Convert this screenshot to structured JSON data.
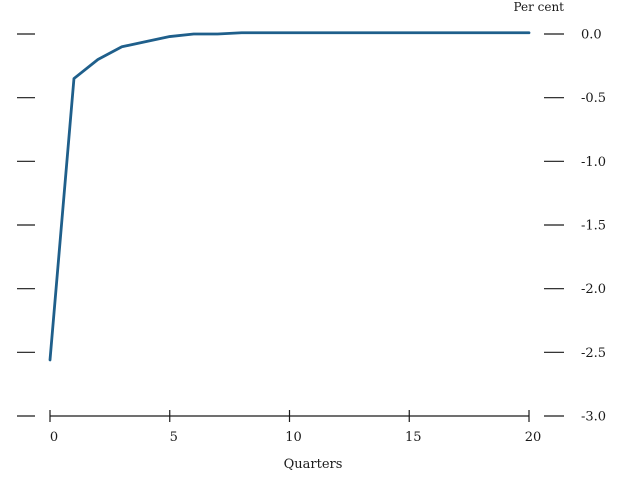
{
  "chart_data": {
    "type": "line",
    "unit_label": "Per cent",
    "xlabel": "Quarters",
    "ylabel": "",
    "xlim": [
      0,
      20
    ],
    "ylim": [
      -3.0,
      0.0
    ],
    "x_ticks": [
      0,
      5,
      10,
      15,
      20
    ],
    "x_tick_labels": [
      "0",
      "5",
      "10",
      "15",
      "20"
    ],
    "y_ticks": [
      0.0,
      -0.5,
      -1.0,
      -1.5,
      -2.0,
      -2.5,
      -3.0
    ],
    "y_tick_labels": [
      "0.0",
      "-0.5",
      "-1.0",
      "-1.5",
      "-2.0",
      "-2.5",
      "-3.0"
    ],
    "grid": false,
    "series": [
      {
        "color": "#1f5f8b",
        "x": [
          0,
          1,
          2,
          3,
          4,
          5,
          6,
          7,
          8,
          9,
          10,
          11,
          12,
          13,
          14,
          15,
          16,
          17,
          18,
          19,
          20
        ],
        "values": [
          -2.56,
          -0.35,
          -0.2,
          -0.1,
          -0.06,
          -0.02,
          0.0,
          0.0,
          0.01,
          0.01,
          0.01,
          0.01,
          0.01,
          0.01,
          0.01,
          0.01,
          0.01,
          0.01,
          0.01,
          0.01,
          0.01
        ]
      }
    ]
  }
}
